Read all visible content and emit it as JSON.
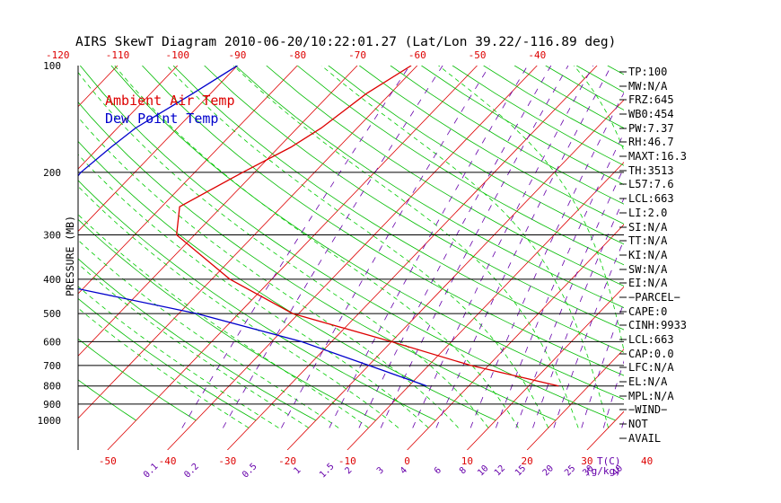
{
  "chart_data": {
    "type": "line",
    "title": "AIRS SkewT Diagram 2010-06-20/10:22:01.27 (Lat/Lon 39.22/-116.89 deg)",
    "ylabel": "PRESSURE (MB)",
    "x_bottom_label": "T(C)",
    "x_mixing_label": "(g/kg)",
    "top_temp_ticks": [
      "-120",
      "-110",
      "-100",
      "-90",
      "-80",
      "-70",
      "-60",
      "-50",
      "-40"
    ],
    "bottom_temp_ticks": [
      "-50",
      "-40",
      "-30",
      "-20",
      "-10",
      "0",
      "10",
      "20",
      "30",
      "40"
    ],
    "mixing_ratio_labels": [
      "0.1",
      "0.2",
      "0.5",
      "1",
      "1.5",
      "2",
      "3",
      "4",
      "6",
      "8",
      "10",
      "12",
      "15",
      "20",
      "25",
      "30",
      "40"
    ],
    "pressure_ticks": [
      "100",
      "200",
      "300",
      "400",
      "500",
      "600",
      "700",
      "800",
      "900",
      "1000"
    ],
    "pressure_lines": [
      200,
      300,
      400,
      500,
      600,
      700,
      800,
      900
    ],
    "legend": [
      "Ambient Air Temp",
      "Dew Point Temp"
    ],
    "series": [
      {
        "name": "Ambient Air Temp",
        "color": "#dd0000",
        "points": [
          [
            100,
            -61
          ],
          [
            120,
            -64
          ],
          [
            150,
            -66
          ],
          [
            170,
            -68
          ],
          [
            200,
            -72
          ],
          [
            250,
            -77
          ],
          [
            300,
            -73
          ],
          [
            400,
            -57
          ],
          [
            500,
            -41
          ],
          [
            600,
            -20
          ],
          [
            700,
            -3
          ],
          [
            800,
            15
          ]
        ]
      },
      {
        "name": "Dew Point Temp",
        "color": "#0000cc",
        "points": [
          [
            100,
            -90
          ],
          [
            120,
            -93
          ],
          [
            150,
            -97
          ],
          [
            170,
            -98
          ],
          [
            200,
            -99
          ],
          [
            250,
            -98
          ],
          [
            300,
            -100
          ],
          [
            400,
            -90
          ],
          [
            500,
            -57
          ],
          [
            600,
            -35
          ],
          [
            700,
            -20
          ],
          [
            800,
            -7
          ]
        ]
      }
    ],
    "indices": [
      "TP:100",
      "MW:N/A",
      "FRZ:645",
      "WB0:454",
      "PW:7.37",
      "RH:46.7",
      "MAXT:16.3",
      "TH:3513",
      "L57:7.6",
      "LCL:663",
      "LI:2.0",
      "SI:N/A",
      "TT:N/A",
      "KI:N/A",
      "SW:N/A",
      "EI:N/A",
      "−PARCEL−",
      "CAPE:0",
      "CINH:9933",
      "LCL:663",
      "CAP:0.0",
      "LFC:N/A",
      "EL:N/A",
      "MPL:N/A",
      "−WIND−",
      "NOT",
      "AVAIL"
    ],
    "colors": {
      "temp": "#dd0000",
      "dew": "#0000cc",
      "isotherm": "#dd0000",
      "dry_adiabat": "#00bb00",
      "moist_adiabat": "#00cc00",
      "mixing": "#6600aa",
      "pressure": "#000000"
    }
  }
}
